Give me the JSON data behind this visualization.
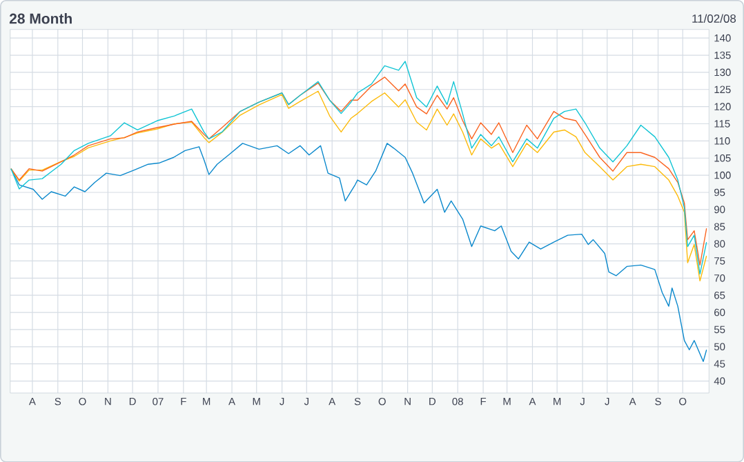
{
  "chart_data": {
    "type": "line",
    "title": "28 Month",
    "annotations": [
      "11/02/08"
    ],
    "xlim": [
      "2006-07-05",
      "2008-11-02"
    ],
    "ylim": [
      36.5,
      142.5
    ],
    "xticks": [
      {
        "value": "2006-08-01",
        "label": "A"
      },
      {
        "value": "2006-09-01",
        "label": "S"
      },
      {
        "value": "2006-10-01",
        "label": "O"
      },
      {
        "value": "2006-11-01",
        "label": "N"
      },
      {
        "value": "2006-12-01",
        "label": "D"
      },
      {
        "value": "2007-01-01",
        "label": "07"
      },
      {
        "value": "2007-02-01",
        "label": "F"
      },
      {
        "value": "2007-03-01",
        "label": "M"
      },
      {
        "value": "2007-04-01",
        "label": "A"
      },
      {
        "value": "2007-05-01",
        "label": "M"
      },
      {
        "value": "2007-06-01",
        "label": "J"
      },
      {
        "value": "2007-07-01",
        "label": "J"
      },
      {
        "value": "2007-08-01",
        "label": "A"
      },
      {
        "value": "2007-09-01",
        "label": "S"
      },
      {
        "value": "2007-10-01",
        "label": "O"
      },
      {
        "value": "2007-11-01",
        "label": "N"
      },
      {
        "value": "2007-12-01",
        "label": "D"
      },
      {
        "value": "2008-01-01",
        "label": "08"
      },
      {
        "value": "2008-02-01",
        "label": "F"
      },
      {
        "value": "2008-03-01",
        "label": "M"
      },
      {
        "value": "2008-04-01",
        "label": "A"
      },
      {
        "value": "2008-05-01",
        "label": "M"
      },
      {
        "value": "2008-06-01",
        "label": "J"
      },
      {
        "value": "2008-07-01",
        "label": "J"
      },
      {
        "value": "2008-08-01",
        "label": "A"
      },
      {
        "value": "2008-09-01",
        "label": "S"
      },
      {
        "value": "2008-10-01",
        "label": "O"
      }
    ],
    "yticks": [
      40,
      45,
      50,
      55,
      60,
      65,
      70,
      75,
      80,
      85,
      90,
      95,
      100,
      105,
      110,
      115,
      120,
      125,
      130,
      135,
      140
    ],
    "grid": true,
    "x": [
      "2006-07-06",
      "2006-07-16",
      "2006-07-28",
      "2006-08-13",
      "2006-09-05",
      "2006-09-21",
      "2006-10-08",
      "2006-11-04",
      "2006-11-21",
      "2006-12-07",
      "2006-12-31",
      "2007-01-21",
      "2007-02-11",
      "2007-02-26",
      "2007-03-04",
      "2007-03-20",
      "2007-04-11",
      "2007-05-04",
      "2007-06-01",
      "2007-06-09",
      "2007-06-23",
      "2007-07-15",
      "2007-07-29",
      "2007-08-12",
      "2007-08-24",
      "2007-09-01",
      "2007-09-18",
      "2007-10-04",
      "2007-10-21",
      "2007-10-29",
      "2007-11-12",
      "2007-11-24",
      "2007-12-07",
      "2007-12-19",
      "2007-12-27",
      "2008-01-07",
      "2008-01-18",
      "2008-01-29",
      "2008-02-11",
      "2008-02-20",
      "2008-03-08",
      "2008-03-25",
      "2008-04-07",
      "2008-04-27",
      "2008-05-10",
      "2008-05-24",
      "2008-06-04",
      "2008-06-22",
      "2008-07-08",
      "2008-07-25",
      "2008-08-11",
      "2008-08-28",
      "2008-09-14",
      "2008-09-25",
      "2008-10-03",
      "2008-10-07",
      "2008-10-15",
      "2008-10-22",
      "2008-10-30"
    ],
    "series": [
      {
        "color": "#0a88cc",
        "x": [
          "2006-07-06",
          "2006-07-16",
          "2006-08-02",
          "2006-08-13",
          "2006-08-24",
          "2006-09-10",
          "2006-09-21",
          "2006-10-04",
          "2006-10-16",
          "2006-10-30",
          "2006-11-16",
          "2006-12-03",
          "2006-12-20",
          "2007-01-03",
          "2007-01-20",
          "2007-02-03",
          "2007-02-20",
          "2007-02-26",
          "2007-03-04",
          "2007-03-14",
          "2007-03-28",
          "2007-04-14",
          "2007-05-04",
          "2007-05-26",
          "2007-06-09",
          "2007-06-23",
          "2007-07-04",
          "2007-07-18",
          "2007-07-27",
          "2007-08-10",
          "2007-08-17",
          "2007-08-29",
          "2007-09-01",
          "2007-09-12",
          "2007-09-23",
          "2007-10-07",
          "2007-10-15",
          "2007-10-29",
          "2007-11-07",
          "2007-11-21",
          "2007-12-07",
          "2007-12-16",
          "2007-12-24",
          "2008-01-07",
          "2008-01-18",
          "2008-01-29",
          "2008-02-15",
          "2008-02-23",
          "2008-03-06",
          "2008-03-15",
          "2008-03-28",
          "2008-04-11",
          "2008-04-27",
          "2008-05-14",
          "2008-05-31",
          "2008-06-08",
          "2008-06-14",
          "2008-06-28",
          "2008-07-03",
          "2008-07-12",
          "2008-07-25",
          "2008-08-11",
          "2008-08-28",
          "2008-09-06",
          "2008-09-14",
          "2008-09-18",
          "2008-09-25",
          "2008-10-03",
          "2008-10-09",
          "2008-10-15",
          "2008-10-26",
          "2008-10-30"
        ],
        "values": [
          101.9,
          97.2,
          95.9,
          93.0,
          95.2,
          93.9,
          96.6,
          95.2,
          97.9,
          100.6,
          99.9,
          101.5,
          103.2,
          103.6,
          105.2,
          107.2,
          108.3,
          104.5,
          100.2,
          103.2,
          105.9,
          109.3,
          107.6,
          108.6,
          106.3,
          108.6,
          105.9,
          108.6,
          100.6,
          99.2,
          92.5,
          97.2,
          98.6,
          97.2,
          101.2,
          109.3,
          107.9,
          105.2,
          100.6,
          91.9,
          95.9,
          89.2,
          92.5,
          87.2,
          79.2,
          85.2,
          83.8,
          85.2,
          77.8,
          75.6,
          80.5,
          78.5,
          80.5,
          82.5,
          82.8,
          79.8,
          81.2,
          77.2,
          71.8,
          70.7,
          73.4,
          73.8,
          72.5,
          65.8,
          61.8,
          67.1,
          61.8,
          51.8,
          49.1,
          51.8,
          45.7,
          49.1
        ]
      },
      {
        "color": "#fcba0a",
        "values": [
          101.9,
          98.3,
          101.5,
          101.5,
          104.0,
          105.5,
          108.0,
          110.0,
          111.0,
          112.3,
          113.5,
          115.0,
          115.5,
          111.0,
          109.5,
          112.5,
          117.5,
          120.5,
          123.5,
          119.5,
          121.5,
          124.5,
          117.3,
          112.6,
          116.6,
          118.0,
          121.5,
          124.0,
          119.9,
          122.0,
          115.5,
          113.2,
          119.3,
          114.6,
          117.9,
          112.6,
          105.9,
          110.6,
          107.9,
          109.3,
          102.5,
          109.3,
          106.6,
          112.6,
          113.2,
          111.2,
          106.6,
          102.5,
          98.6,
          102.5,
          103.2,
          102.5,
          98.6,
          93.9,
          89.2,
          74.5,
          79.8,
          69.2,
          76.5
        ]
      },
      {
        "color": "#fa6420",
        "values": [
          101.9,
          98.6,
          101.9,
          101.2,
          103.9,
          105.9,
          108.6,
          110.6,
          110.9,
          112.6,
          113.9,
          114.9,
          115.7,
          111.9,
          110.6,
          113.9,
          118.6,
          121.3,
          124.0,
          120.6,
          123.3,
          126.9,
          121.9,
          118.6,
          121.9,
          121.9,
          126.0,
          128.6,
          124.6,
          126.6,
          119.9,
          117.9,
          123.3,
          119.3,
          122.6,
          115.9,
          110.6,
          115.3,
          111.9,
          115.3,
          106.6,
          114.6,
          110.6,
          118.6,
          116.6,
          115.9,
          111.9,
          105.2,
          101.2,
          106.6,
          106.6,
          105.2,
          101.9,
          97.9,
          91.9,
          81.2,
          83.8,
          73.8,
          84.5
        ]
      },
      {
        "color": "#10c4d4",
        "values": [
          101.9,
          96.0,
          98.6,
          99.0,
          103.2,
          107.2,
          109.3,
          111.5,
          115.3,
          113.2,
          115.9,
          117.3,
          119.3,
          112.6,
          110.6,
          112.6,
          118.6,
          121.3,
          124.0,
          120.6,
          123.3,
          127.3,
          121.9,
          118.0,
          121.3,
          124.0,
          126.6,
          131.9,
          130.6,
          133.2,
          122.6,
          119.9,
          126.0,
          120.6,
          127.3,
          117.9,
          107.9,
          111.9,
          108.6,
          111.2,
          103.9,
          110.6,
          107.9,
          116.6,
          118.6,
          119.3,
          115.3,
          107.9,
          103.9,
          108.6,
          114.6,
          111.2,
          105.2,
          98.6,
          90.5,
          79.2,
          82.5,
          71.2,
          80.5
        ]
      }
    ]
  }
}
